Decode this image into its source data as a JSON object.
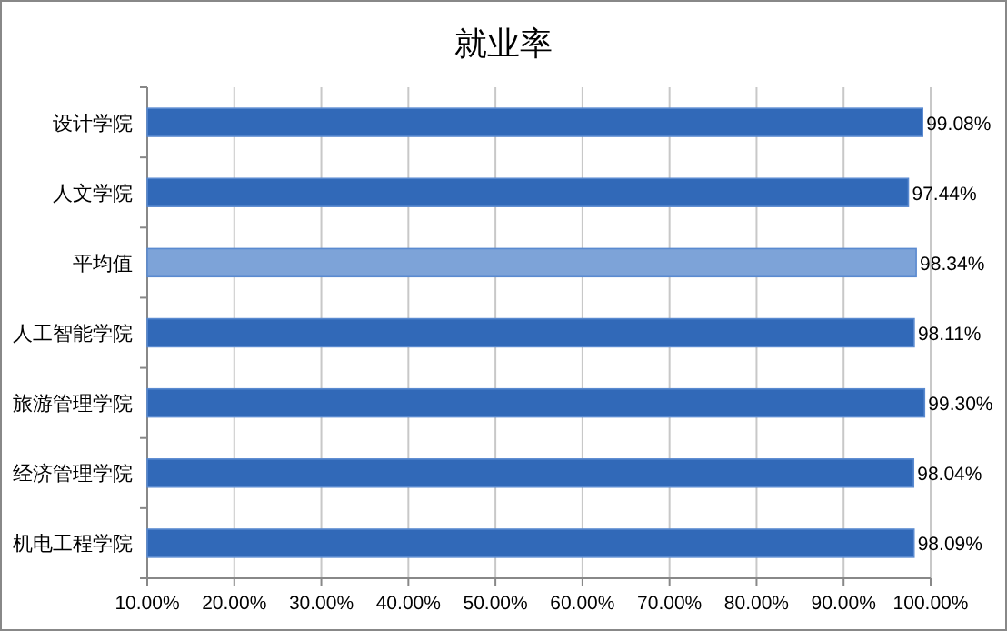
{
  "chart_data": {
    "type": "bar",
    "orientation": "horizontal",
    "title": "就业率",
    "categories": [
      "设计学院",
      "人文学院",
      "平均值",
      "人工智能学院",
      "旅游管理学院",
      "经济管理学院",
      "机电工程学院"
    ],
    "values": [
      99.08,
      97.44,
      98.34,
      98.11,
      99.3,
      98.04,
      98.09
    ],
    "value_labels": [
      "99.08%",
      "97.44%",
      "98.34%",
      "98.11%",
      "99.30%",
      "98.04%",
      "98.09%"
    ],
    "colors": [
      "#3169b8",
      "#3169b8",
      "#7da3d8",
      "#3169b8",
      "#3169b8",
      "#3169b8",
      "#3169b8"
    ],
    "xlim": [
      10,
      100
    ],
    "xticks": [
      {
        "value": 10,
        "label": "10.00%"
      },
      {
        "value": 20,
        "label": "20.00%"
      },
      {
        "value": 30,
        "label": "30.00%"
      },
      {
        "value": 40,
        "label": "40.00%"
      },
      {
        "value": 50,
        "label": "50.00%"
      },
      {
        "value": 60,
        "label": "60.00%"
      },
      {
        "value": 70,
        "label": "70.00%"
      },
      {
        "value": 80,
        "label": "80.00%"
      },
      {
        "value": 90,
        "label": "90.00%"
      },
      {
        "value": 100,
        "label": "100.00%"
      }
    ],
    "grid": "x"
  }
}
